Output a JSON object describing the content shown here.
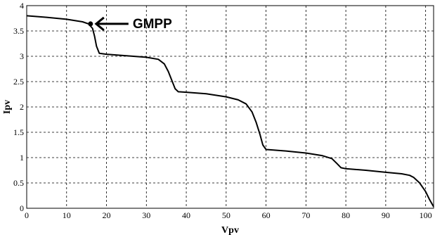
{
  "chart_data": {
    "type": "line",
    "title": "",
    "xlabel": "Vpv",
    "ylabel": "Ipv",
    "xlim": [
      0,
      102
    ],
    "ylim": [
      0,
      4
    ],
    "xticks": [
      0,
      10,
      20,
      30,
      40,
      50,
      60,
      70,
      80,
      90,
      100
    ],
    "yticks": [
      0,
      0.5,
      1,
      1.5,
      2,
      2.5,
      3,
      3.5,
      4
    ],
    "grid": true,
    "series": [
      {
        "x": [
          0,
          5,
          10,
          14,
          15.5,
          16.5,
          17,
          17.5,
          18.2,
          20,
          25,
          30,
          33,
          34.5,
          35.5,
          36.5,
          37.2,
          38,
          40,
          45,
          50,
          53,
          55,
          56.5,
          57.5,
          58.5,
          59.2,
          60,
          65,
          70,
          74,
          76.5,
          77.8,
          78.8,
          80,
          85,
          90,
          94,
          96,
          97,
          98.5,
          100,
          101,
          102
        ],
        "y": [
          3.8,
          3.77,
          3.73,
          3.68,
          3.64,
          3.55,
          3.4,
          3.2,
          3.06,
          3.04,
          3.01,
          2.98,
          2.94,
          2.85,
          2.7,
          2.5,
          2.36,
          2.3,
          2.29,
          2.26,
          2.2,
          2.14,
          2.06,
          1.9,
          1.7,
          1.45,
          1.25,
          1.16,
          1.13,
          1.09,
          1.04,
          0.98,
          0.88,
          0.8,
          0.78,
          0.75,
          0.71,
          0.68,
          0.65,
          0.61,
          0.5,
          0.33,
          0.17,
          0.03
        ]
      }
    ],
    "annotations": [
      {
        "text": "GMPP",
        "x": 16,
        "y": 3.64
      }
    ]
  }
}
